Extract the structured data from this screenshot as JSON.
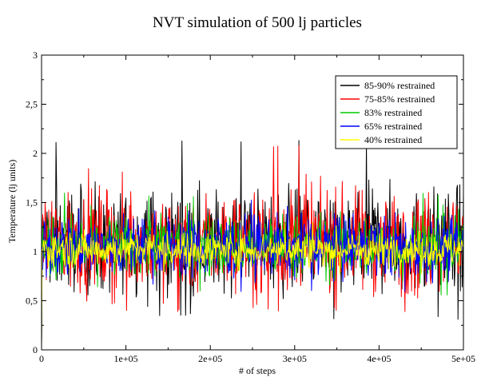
{
  "chart_data": {
    "type": "line",
    "title": "NVT simulation of 500 lj particles",
    "xlabel": "# of steps",
    "ylabel": "Temperature (lj units)",
    "xlim": [
      0,
      500000
    ],
    "ylim": [
      0,
      3
    ],
    "x_ticks": [
      0,
      100000,
      200000,
      300000,
      400000,
      500000
    ],
    "x_tick_labels": [
      "0",
      "1e+05",
      "2e+05",
      "3e+05",
      "4e+05",
      "5e+05"
    ],
    "y_ticks": [
      0,
      0.5,
      1,
      1.5,
      2,
      2.5,
      3
    ],
    "y_tick_labels": [
      "0",
      "0,5",
      "1",
      "1,5",
      "2",
      "2,5",
      "3"
    ],
    "grid": false,
    "legend_position": "top-right",
    "series": [
      {
        "name": "85-90% restrained",
        "color": "#000000",
        "mean": 1.0,
        "band": [
          0.45,
          1.75
        ],
        "max": 2.15,
        "min": 0.3
      },
      {
        "name": "75-85% restrained",
        "color": "#ff0000",
        "mean": 1.0,
        "band": [
          0.45,
          1.75
        ],
        "max": 2.1,
        "min": 0.38
      },
      {
        "name": "83% restrained",
        "color": "#00cc00",
        "mean": 1.0,
        "band": [
          0.65,
          1.45
        ],
        "max": 1.6,
        "min": 0.55
      },
      {
        "name": "65% restrained",
        "color": "#0000ff",
        "mean": 1.0,
        "band": [
          0.65,
          1.45
        ],
        "max": 1.55,
        "min": 0.58
      },
      {
        "name": "40% restrained",
        "color": "#ffff00",
        "mean": 1.0,
        "band": [
          0.8,
          1.25
        ],
        "max": 1.3,
        "min": 0.75
      }
    ]
  }
}
